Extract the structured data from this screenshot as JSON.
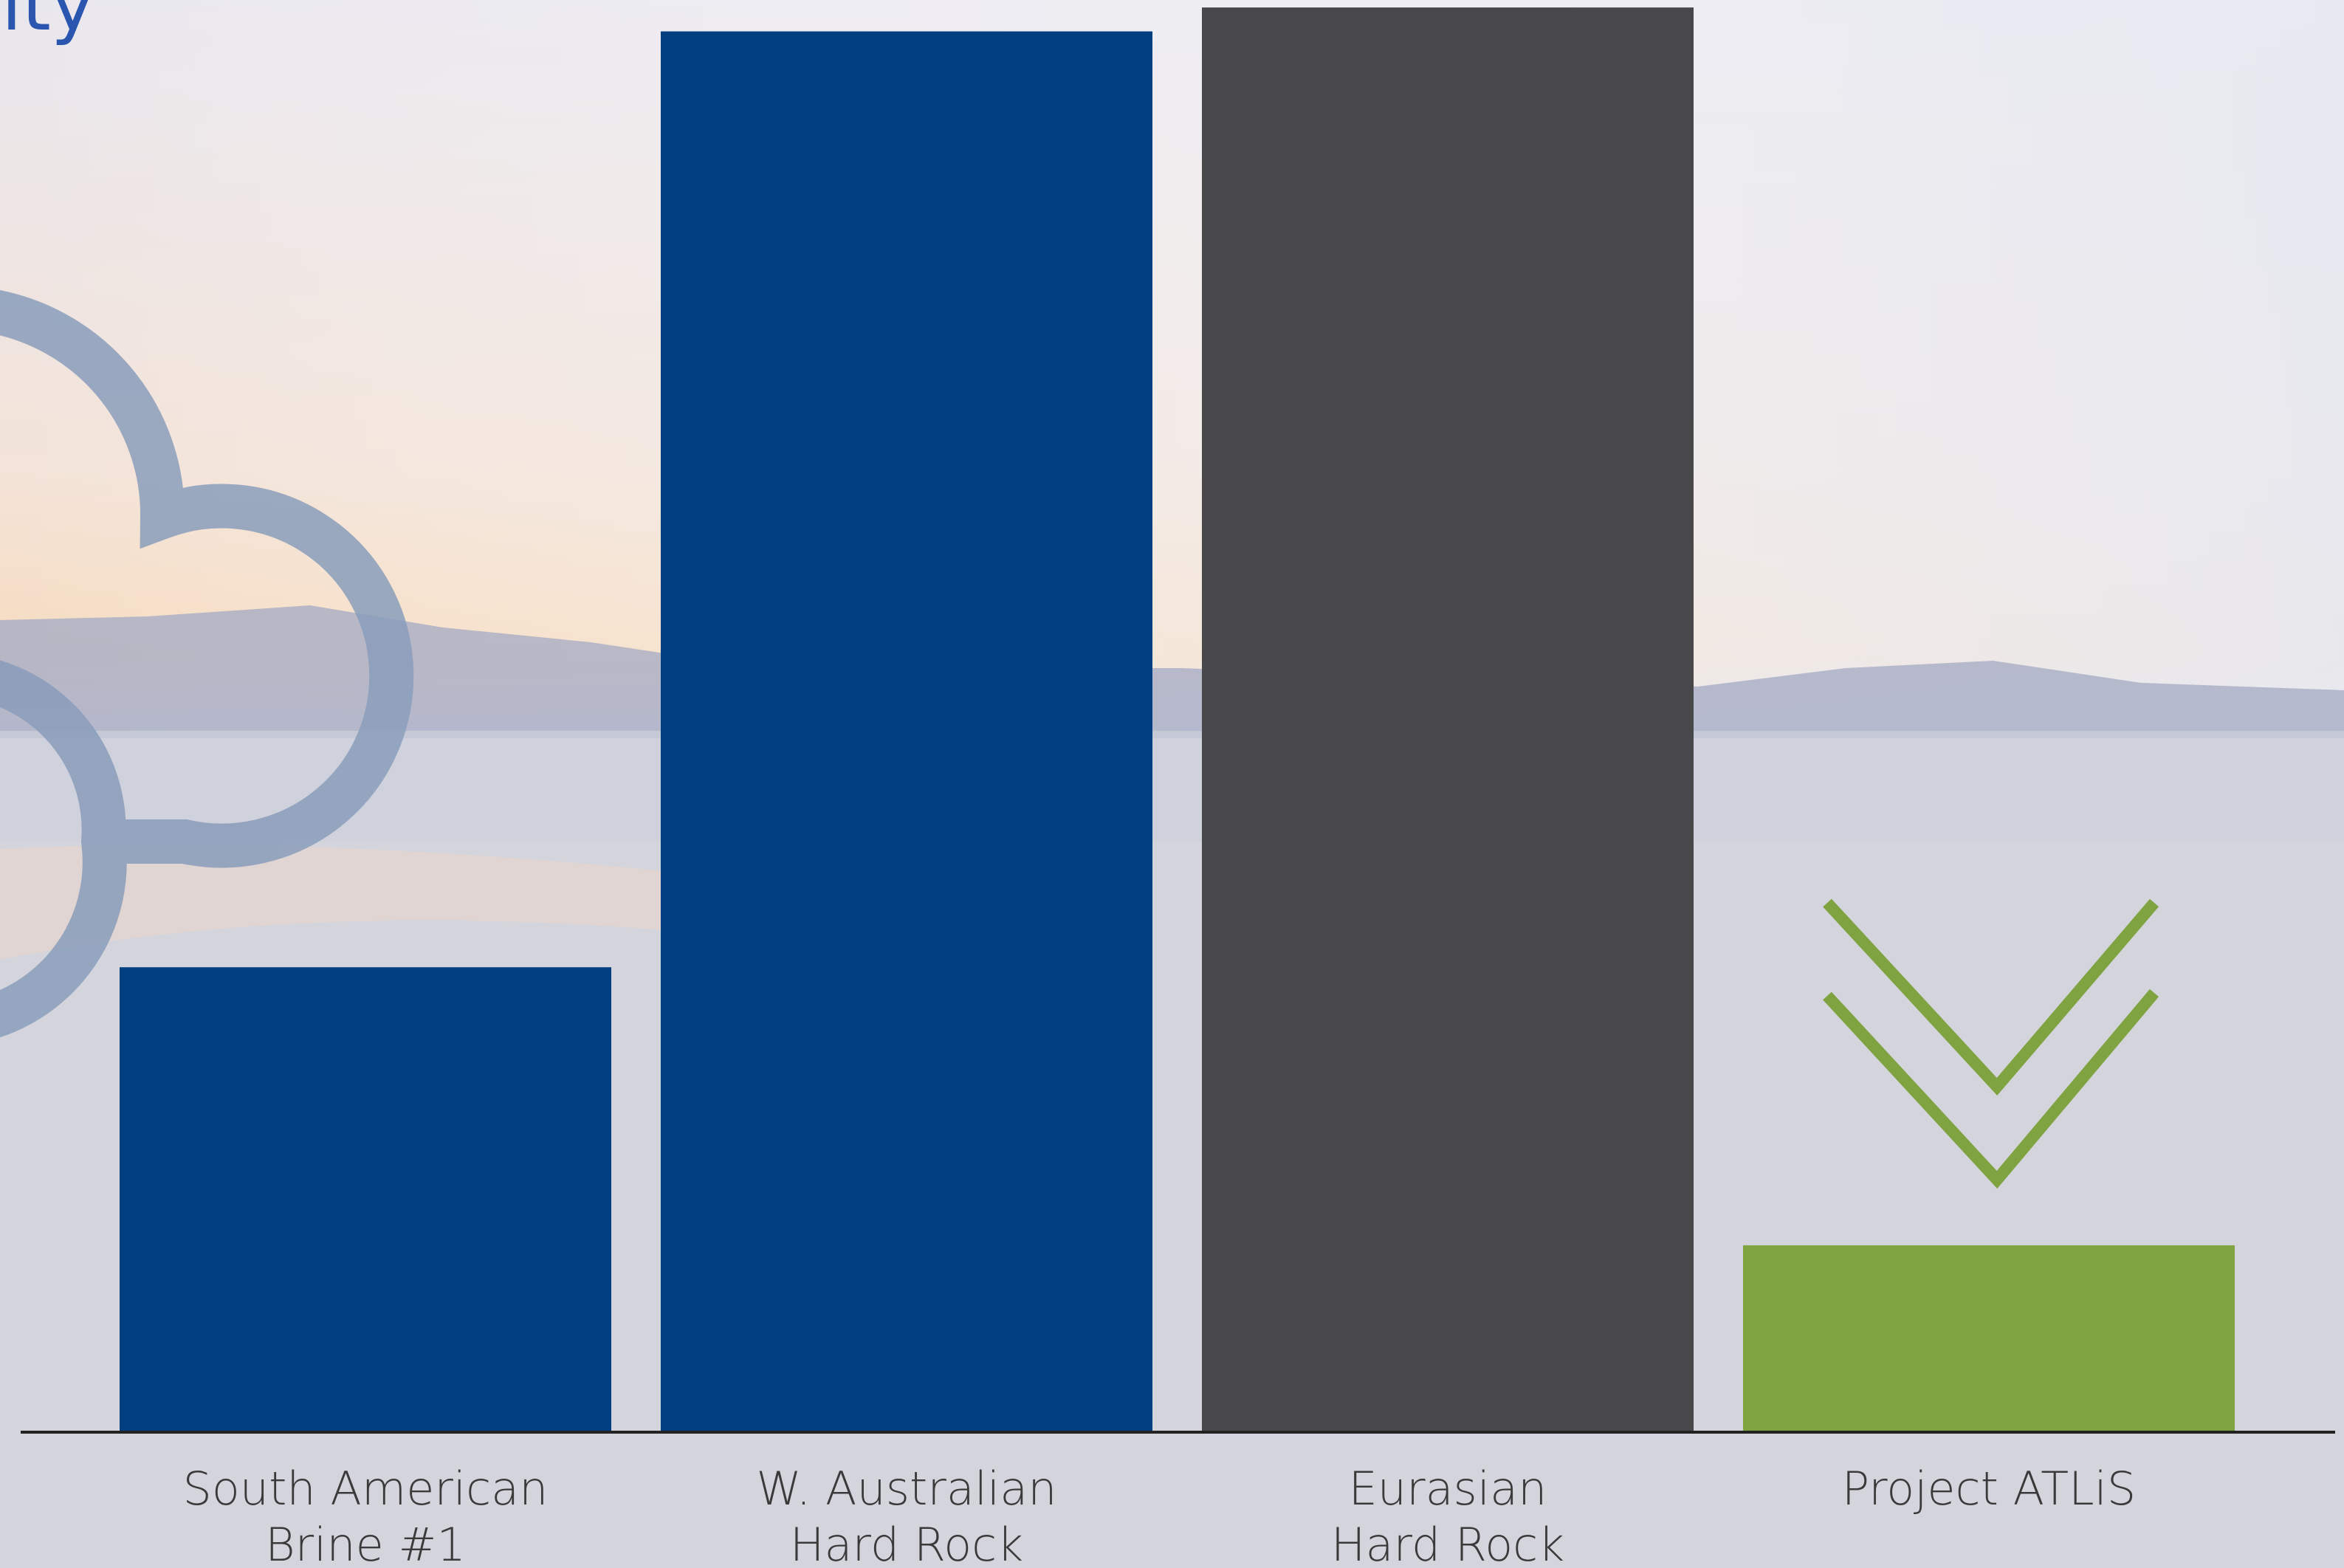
{
  "chart_data": {
    "type": "bar",
    "title": "ity",
    "categories": [
      [
        "South American",
        "Brine #1"
      ],
      [
        "W. Australian",
        "Hard Rock"
      ],
      [
        "Eurasian",
        "Hard Rock"
      ],
      [
        "Project ATLiS"
      ]
    ],
    "values": [
      311,
      937,
      953,
      125
    ],
    "colors": [
      "#023f80",
      "#023f80",
      "#48484a",
      "#80a341"
    ],
    "ylim": [
      0,
      958
    ]
  }
}
